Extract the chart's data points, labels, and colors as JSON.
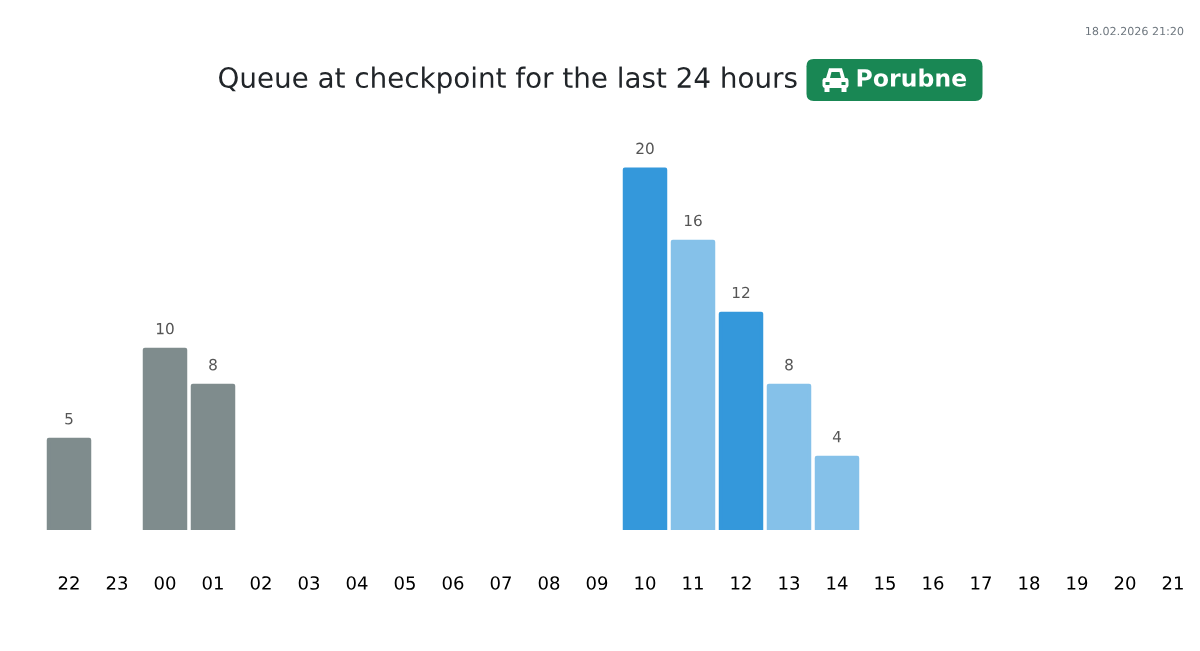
{
  "chart_data": {
    "type": "bar",
    "title": "Queue at checkpoint for the last 24 hours",
    "subtitle": "Porubne",
    "annotations": [
      "18.02.2026 21:20"
    ],
    "categories": [
      "22",
      "23",
      "00",
      "01",
      "02",
      "03",
      "04",
      "05",
      "06",
      "07",
      "08",
      "09",
      "10",
      "11",
      "12",
      "13",
      "14",
      "15",
      "16",
      "17",
      "18",
      "19",
      "20",
      "21"
    ],
    "values": [
      5,
      null,
      10,
      8,
      null,
      null,
      null,
      null,
      null,
      null,
      null,
      null,
      20,
      16,
      12,
      8,
      4,
      null,
      null,
      null,
      null,
      null,
      null,
      null
    ],
    "colors": [
      "#7f8c8d",
      null,
      "#7f8c8d",
      "#7f8c8d",
      null,
      null,
      null,
      null,
      null,
      null,
      null,
      null,
      "#3498db",
      "#85c1e9",
      "#3498db",
      "#85c1e9",
      "#85c1e9",
      null,
      null,
      null,
      null,
      null,
      null,
      null
    ],
    "data_labels": true
  }
}
